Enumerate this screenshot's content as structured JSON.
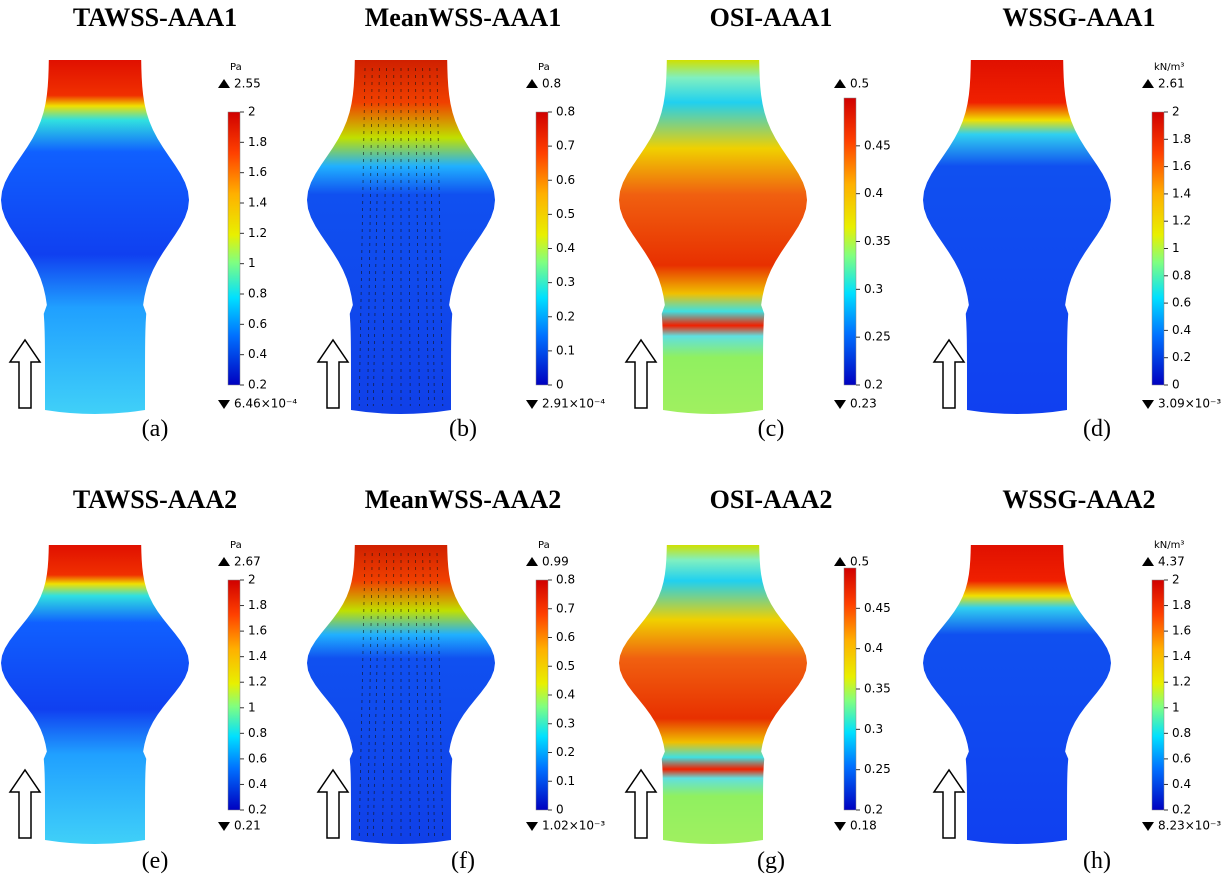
{
  "panels": [
    {
      "title": "TAWSS-AAA1",
      "caption": "(a)",
      "unit": "Pa",
      "max_label": "2.55",
      "min_label": "6.46×10⁻⁴",
      "ticks": [
        "2",
        "1.8",
        "1.6",
        "1.4",
        "1.2",
        "1",
        "0.8",
        "0.6",
        "0.4",
        "0.2"
      ]
    },
    {
      "title": "MeanWSS-AAA1",
      "caption": "(b)",
      "unit": "Pa",
      "max_label": "0.8",
      "min_label": "2.91×10⁻⁴",
      "ticks": [
        "0.8",
        "0.7",
        "0.6",
        "0.5",
        "0.4",
        "0.3",
        "0.2",
        "0.1",
        "0"
      ]
    },
    {
      "title": "OSI-AAA1",
      "caption": "(c)",
      "max_label": "0.5",
      "min_label": "0.23",
      "ticks": [
        "0.45",
        "0.4",
        "0.35",
        "0.3",
        "0.25",
        "0.2"
      ]
    },
    {
      "title": "WSSG-AAA1",
      "caption": "(d)",
      "unit": "kN/m³",
      "max_label": "2.61",
      "min_label": "3.09×10⁻³",
      "ticks": [
        "2",
        "1.8",
        "1.6",
        "1.4",
        "1.2",
        "1",
        "0.8",
        "0.6",
        "0.4",
        "0.2",
        "0"
      ]
    },
    {
      "title": "TAWSS-AAA2",
      "caption": "(e)",
      "unit": "Pa",
      "max_label": "2.67",
      "min_label": "0.21",
      "ticks": [
        "2",
        "1.8",
        "1.6",
        "1.4",
        "1.2",
        "1",
        "0.8",
        "0.6",
        "0.4",
        "0.2"
      ]
    },
    {
      "title": "MeanWSS-AAA2",
      "caption": "(f)",
      "unit": "Pa",
      "max_label": "0.99",
      "min_label": "1.02×10⁻³",
      "ticks": [
        "0.8",
        "0.7",
        "0.6",
        "0.5",
        "0.4",
        "0.3",
        "0.2",
        "0.1",
        "0"
      ]
    },
    {
      "title": "OSI-AAA2",
      "caption": "(g)",
      "max_label": "0.5",
      "min_label": "0.18",
      "ticks": [
        "0.45",
        "0.4",
        "0.35",
        "0.3",
        "0.25",
        "0.2"
      ]
    },
    {
      "title": "WSSG-AAA2",
      "caption": "(h)",
      "unit": "kN/m³",
      "max_label": "4.37",
      "min_label": "8.23×10⁻³",
      "ticks": [
        "2",
        "1.8",
        "1.6",
        "1.4",
        "1.2",
        "1",
        "0.8",
        "0.6",
        "0.4",
        "0.2"
      ]
    }
  ]
}
